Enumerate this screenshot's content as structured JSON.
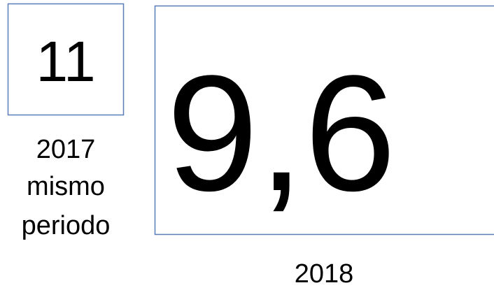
{
  "previous": {
    "value": "11",
    "caption": [
      "2017",
      "mismo",
      "periodo"
    ]
  },
  "current": {
    "value": "9,6",
    "caption": "2018"
  }
}
